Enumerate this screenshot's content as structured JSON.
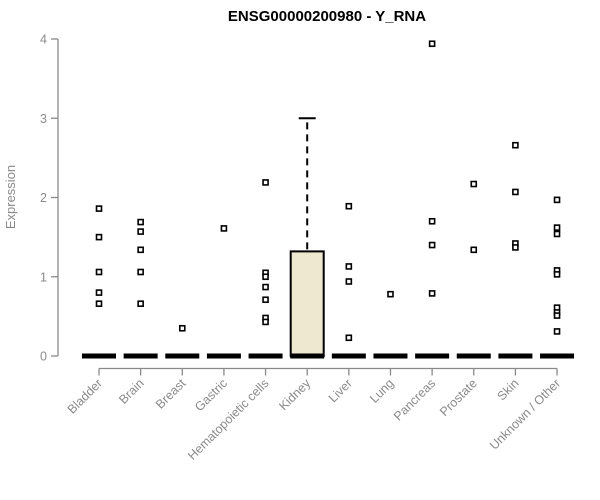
{
  "chart_data": {
    "type": "boxplot",
    "title": "ENSG00000200980 - Y_RNA",
    "ylabel": "Expression",
    "xlabel": "",
    "ylim": [
      0,
      4
    ],
    "yticks": [
      0,
      1,
      2,
      3,
      4
    ],
    "grid": false,
    "legend": false,
    "categories": [
      "Bladder",
      "Brain",
      "Breast",
      "Gastric",
      "Hematopoietic cells",
      "Kidney",
      "Liver",
      "Lung",
      "Pancreas",
      "Prostate",
      "Skin",
      "Unknown / Other"
    ],
    "series": [
      {
        "name": "Bladder",
        "box": {
          "q1": 0,
          "median": 0,
          "q3": 0,
          "whisker_low": 0,
          "whisker_high": 0
        },
        "outliers": [
          1.86,
          1.5,
          1.06,
          0.8,
          0.66
        ]
      },
      {
        "name": "Brain",
        "box": {
          "q1": 0,
          "median": 0,
          "q3": 0,
          "whisker_low": 0,
          "whisker_high": 0
        },
        "outliers": [
          1.69,
          1.57,
          1.34,
          1.06,
          0.66
        ]
      },
      {
        "name": "Breast",
        "box": {
          "q1": 0,
          "median": 0,
          "q3": 0,
          "whisker_low": 0,
          "whisker_high": 0
        },
        "outliers": [
          0.35
        ]
      },
      {
        "name": "Gastric",
        "box": {
          "q1": 0,
          "median": 0,
          "q3": 0,
          "whisker_low": 0,
          "whisker_high": 0
        },
        "outliers": [
          1.61
        ]
      },
      {
        "name": "Hematopoietic cells",
        "box": {
          "q1": 0,
          "median": 0,
          "q3": 0,
          "whisker_low": 0,
          "whisker_high": 0
        },
        "outliers": [
          2.19,
          1.05,
          1.0,
          0.87,
          0.71,
          0.48,
          0.43
        ]
      },
      {
        "name": "Kidney",
        "box": {
          "q1": 0,
          "median": 0,
          "q3": 1.32,
          "whisker_low": 0,
          "whisker_high": 3.0
        },
        "outliers": []
      },
      {
        "name": "Liver",
        "box": {
          "q1": 0,
          "median": 0,
          "q3": 0,
          "whisker_low": 0,
          "whisker_high": 0
        },
        "outliers": [
          1.89,
          1.13,
          0.94,
          0.23
        ]
      },
      {
        "name": "Lung",
        "box": {
          "q1": 0,
          "median": 0,
          "q3": 0,
          "whisker_low": 0,
          "whisker_high": 0
        },
        "outliers": [
          0.78
        ]
      },
      {
        "name": "Pancreas",
        "box": {
          "q1": 0,
          "median": 0,
          "q3": 0,
          "whisker_low": 0,
          "whisker_high": 0
        },
        "outliers": [
          3.94,
          1.7,
          1.4,
          0.79
        ]
      },
      {
        "name": "Prostate",
        "box": {
          "q1": 0,
          "median": 0,
          "q3": 0,
          "whisker_low": 0,
          "whisker_high": 0
        },
        "outliers": [
          2.17,
          1.34
        ]
      },
      {
        "name": "Skin",
        "box": {
          "q1": 0,
          "median": 0,
          "q3": 0,
          "whisker_low": 0,
          "whisker_high": 0
        },
        "outliers": [
          2.66,
          2.07,
          1.42,
          1.37
        ]
      },
      {
        "name": "Unknown / Other",
        "box": {
          "q1": 0,
          "median": 0,
          "q3": 0,
          "whisker_low": 0,
          "whisker_high": 0
        },
        "outliers": [
          1.97,
          1.62,
          1.54,
          1.08,
          1.03,
          0.61,
          0.55,
          0.51,
          0.31
        ]
      }
    ],
    "colors": {
      "box_fill": "#EDE8CF",
      "box_stroke": "#000000",
      "median": "#000000",
      "whisker": "#000000",
      "point_stroke": "#000000",
      "point_fill": "#FFFFFF",
      "axis": "#8A8A8A",
      "tick_label": "#8A8A8A",
      "title": "#000000",
      "background": "#FFFFFF"
    }
  }
}
